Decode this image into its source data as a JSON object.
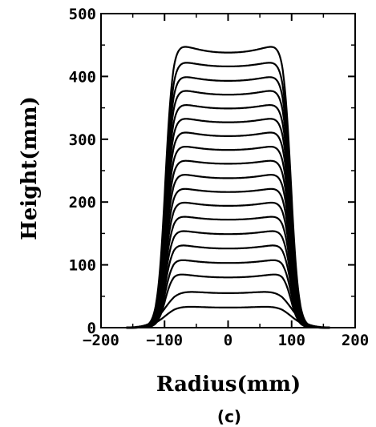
{
  "chart_data": {
    "type": "line",
    "xlabel": "Radius(mm)",
    "ylabel": "Height(mm)",
    "panel_label": "(c)",
    "xlim": [
      -200,
      200
    ],
    "ylim": [
      0,
      500
    ],
    "xticks": [
      -200,
      -100,
      0,
      100,
      200
    ],
    "yticks": [
      0,
      100,
      200,
      300,
      400,
      500
    ],
    "xtick_labels": [
      "−200",
      "−100",
      "0",
      "100",
      "200"
    ],
    "ytick_labels": [
      "0",
      "100",
      "200",
      "300",
      "400",
      "500"
    ],
    "grid": false,
    "legend": "none",
    "profile_note": "nested height profiles h(r), each rising steeply near r = ±100 mm with shallow central dip",
    "series": [
      {
        "center_height": 32,
        "shoulder_height": 37
      },
      {
        "center_height": 55,
        "shoulder_height": 63
      },
      {
        "center_height": 80,
        "shoulder_height": 88
      },
      {
        "center_height": 103,
        "shoulder_height": 111
      },
      {
        "center_height": 126,
        "shoulder_height": 135
      },
      {
        "center_height": 149,
        "shoulder_height": 158
      },
      {
        "center_height": 172,
        "shoulder_height": 181
      },
      {
        "center_height": 194,
        "shoulder_height": 204
      },
      {
        "center_height": 216,
        "shoulder_height": 226
      },
      {
        "center_height": 238,
        "shoulder_height": 249
      },
      {
        "center_height": 261,
        "shoulder_height": 271
      },
      {
        "center_height": 283,
        "shoulder_height": 294
      },
      {
        "center_height": 305,
        "shoulder_height": 317
      },
      {
        "center_height": 327,
        "shoulder_height": 339
      },
      {
        "center_height": 349,
        "shoulder_height": 361
      },
      {
        "center_height": 371,
        "shoulder_height": 384
      },
      {
        "center_height": 393,
        "shoulder_height": 406
      },
      {
        "center_height": 416,
        "shoulder_height": 429
      },
      {
        "center_height": 438,
        "shoulder_height": 457
      }
    ]
  }
}
